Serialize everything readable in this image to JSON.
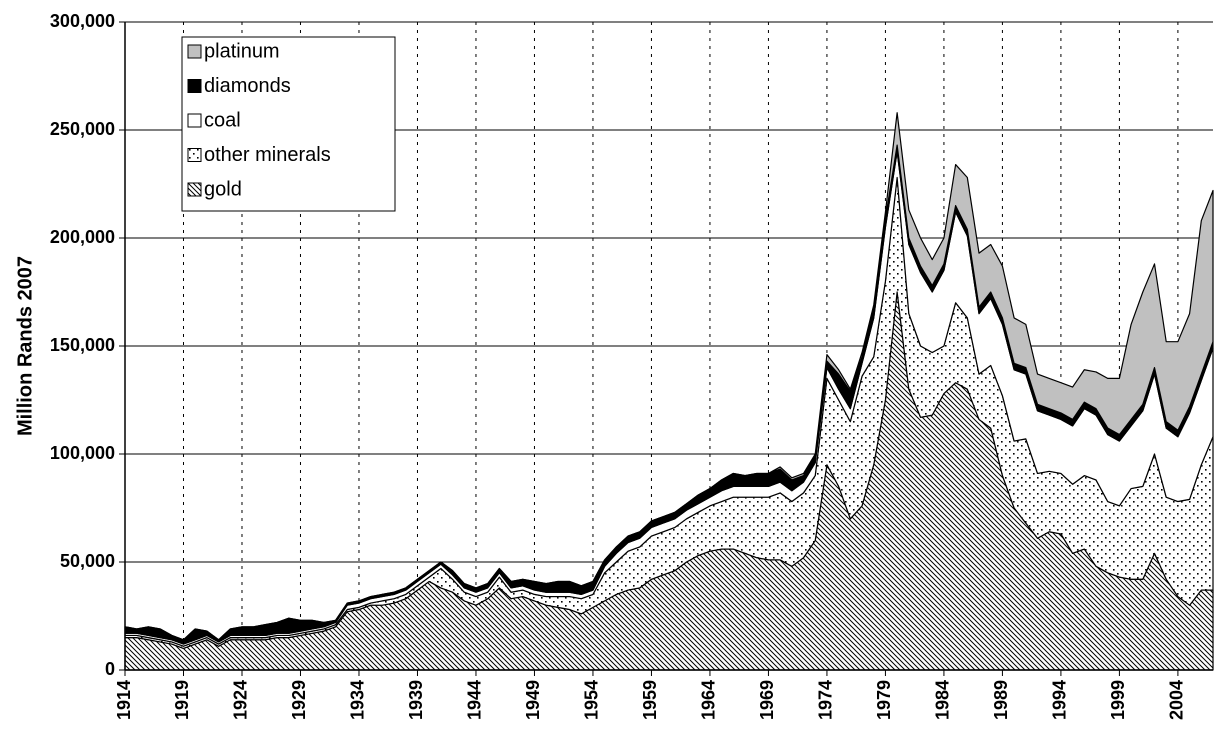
{
  "chart_data": {
    "type": "stacked-area",
    "y_label": "Million Rands 2007",
    "x": [
      1914,
      1915,
      1916,
      1917,
      1918,
      1919,
      1920,
      1921,
      1922,
      1923,
      1924,
      1925,
      1926,
      1927,
      1928,
      1929,
      1930,
      1931,
      1932,
      1933,
      1934,
      1935,
      1936,
      1937,
      1938,
      1939,
      1940,
      1941,
      1942,
      1943,
      1944,
      1945,
      1946,
      1947,
      1948,
      1949,
      1950,
      1951,
      1952,
      1953,
      1954,
      1955,
      1956,
      1957,
      1958,
      1959,
      1960,
      1961,
      1962,
      1963,
      1964,
      1965,
      1966,
      1967,
      1968,
      1969,
      1970,
      1971,
      1972,
      1973,
      1974,
      1975,
      1976,
      1977,
      1978,
      1979,
      1980,
      1981,
      1982,
      1983,
      1984,
      1985,
      1986,
      1987,
      1988,
      1989,
      1990,
      1991,
      1992,
      1993,
      1994,
      1995,
      1996,
      1997,
      1998,
      1999,
      2000,
      2001,
      2002,
      2003,
      2004,
      2005,
      2006,
      2007
    ],
    "xlim": [
      1914,
      2007
    ],
    "xticks": [
      1914,
      1919,
      1924,
      1929,
      1934,
      1939,
      1944,
      1949,
      1954,
      1959,
      1964,
      1969,
      1974,
      1979,
      1984,
      1989,
      1994,
      1999,
      2004
    ],
    "ylim": [
      0,
      300000
    ],
    "yticks": [
      0,
      {
        "value": 50000,
        "label": "50,000"
      },
      {
        "value": 100000,
        "label": "100,000"
      },
      {
        "value": 150000,
        "label": "150,000"
      },
      {
        "value": 200000,
        "label": "200,000"
      },
      {
        "value": 250000,
        "label": "250,000"
      },
      {
        "value": 300000,
        "label": "300,000"
      }
    ],
    "grid": true,
    "legend": "upper left",
    "series": [
      {
        "name": "gold",
        "color": "#ffffff",
        "pattern": "diagonal",
        "values": [
          15000,
          15000,
          14000,
          13000,
          12000,
          10000,
          12000,
          14000,
          11000,
          14000,
          14000,
          14000,
          14000,
          15000,
          15000,
          16000,
          17000,
          18000,
          20000,
          27000,
          28000,
          30000,
          30000,
          31000,
          33000,
          37000,
          41000,
          38000,
          36000,
          32000,
          30000,
          33000,
          38000,
          33000,
          34000,
          32000,
          30000,
          29000,
          28000,
          26000,
          29000,
          32000,
          35000,
          37000,
          38000,
          42000,
          44000,
          46000,
          50000,
          53000,
          55000,
          56000,
          56000,
          54000,
          52000,
          51000,
          51000,
          48000,
          52000,
          60000,
          95000,
          85000,
          70000,
          76000,
          95000,
          125000,
          175000,
          130000,
          117000,
          118000,
          128000,
          133000,
          130000,
          116000,
          112000,
          90000,
          75000,
          68000,
          61000,
          64000,
          63000,
          54000,
          56000,
          48000,
          45000,
          43000,
          42000,
          42000,
          54000,
          42000,
          34000,
          30000,
          37000,
          37000
        ]
      },
      {
        "name": "other minerals",
        "color": "#ffffff",
        "pattern": "dots",
        "values": [
          1000,
          1000,
          1000,
          1000,
          1000,
          1000,
          1000,
          1000,
          1000,
          1000,
          1000,
          1000,
          1000,
          1000,
          1000,
          1000,
          1000,
          1000,
          1000,
          1000,
          1000,
          1000,
          2000,
          2000,
          2000,
          2000,
          2000,
          9000,
          6000,
          4000,
          4000,
          3000,
          5000,
          3000,
          3000,
          3000,
          4000,
          5000,
          6000,
          7000,
          6000,
          13000,
          15000,
          18000,
          19000,
          20000,
          20000,
          20000,
          20000,
          20000,
          21000,
          22000,
          24000,
          26000,
          28000,
          29000,
          31000,
          30000,
          30000,
          30000,
          40000,
          40000,
          45000,
          60000,
          50000,
          55000,
          53000,
          35000,
          33000,
          29000,
          22000,
          37000,
          33000,
          21000,
          29000,
          37000,
          31000,
          39000,
          30000,
          28000,
          28000,
          32000,
          34000,
          40000,
          33000,
          33000,
          42000,
          43000,
          46000,
          38000,
          44000,
          49000,
          58000,
          71000
        ]
      },
      {
        "name": "coal",
        "color": "#ffffff",
        "values": [
          1000,
          1000,
          1000,
          1000,
          1000,
          1000,
          1000,
          1000,
          1000,
          1000,
          1000,
          1000,
          1000,
          1000,
          1000,
          1000,
          1000,
          1000,
          1000,
          2000,
          2000,
          2000,
          2000,
          2000,
          2000,
          2000,
          2000,
          2000,
          2000,
          2000,
          2000,
          2000,
          2000,
          2000,
          2000,
          2000,
          2000,
          2000,
          2000,
          2000,
          2000,
          3000,
          4000,
          4000,
          4000,
          4000,
          4000,
          4000,
          4000,
          4000,
          4000,
          5000,
          5000,
          5000,
          5000,
          5000,
          5000,
          5000,
          5000,
          6000,
          5000,
          5000,
          6000,
          6000,
          18000,
          25000,
          12000,
          32000,
          34000,
          28000,
          35000,
          42000,
          38000,
          28000,
          31000,
          33000,
          33000,
          30000,
          29000,
          26000,
          25000,
          27000,
          31000,
          30000,
          31000,
          30000,
          29000,
          35000,
          37000,
          32000,
          30000,
          40000,
          39000,
          41000
        ]
      },
      {
        "name": "diamonds",
        "color": "#000000",
        "values": [
          3000,
          2000,
          4000,
          4000,
          2000,
          2000,
          5000,
          2000,
          1000,
          3000,
          4000,
          4000,
          5000,
          5000,
          7000,
          5000,
          4000,
          2000,
          1000,
          1000,
          1000,
          1000,
          1000,
          1000,
          1000,
          1000,
          1000,
          1000,
          2000,
          2000,
          2000,
          2000,
          2000,
          3000,
          3000,
          4000,
          4000,
          5000,
          5000,
          4000,
          4000,
          3000,
          3000,
          3000,
          3000,
          3000,
          3000,
          3000,
          3000,
          4000,
          4000,
          5000,
          6000,
          5000,
          6000,
          6000,
          6000,
          5000,
          3000,
          3000,
          3000,
          7000,
          8000,
          3000,
          4000,
          4000,
          3000,
          3000,
          3000,
          3000,
          3000,
          3000,
          3000,
          3000,
          3000,
          3000,
          3000,
          3000,
          3000,
          3000,
          3000,
          3000,
          3000,
          3000,
          3000,
          3000,
          3000,
          3000,
          3000,
          3000,
          3000,
          3000,
          3000,
          3000
        ]
      },
      {
        "name": "platinum",
        "color": "#c0c0c0",
        "values": [
          0,
          0,
          0,
          0,
          0,
          0,
          0,
          0,
          0,
          0,
          0,
          0,
          0,
          0,
          0,
          0,
          0,
          0,
          0,
          0,
          0,
          0,
          0,
          0,
          0,
          0,
          0,
          0,
          0,
          0,
          0,
          0,
          0,
          0,
          0,
          0,
          0,
          0,
          0,
          0,
          0,
          0,
          0,
          0,
          0,
          0,
          0,
          0,
          0,
          0,
          0,
          0,
          0,
          0,
          0,
          0,
          1000,
          1000,
          1000,
          1000,
          3000,
          2000,
          1000,
          2000,
          2000,
          3000,
          15000,
          13000,
          13000,
          12000,
          12000,
          19000,
          24000,
          25000,
          22000,
          24000,
          21000,
          20000,
          14000,
          14000,
          14000,
          15000,
          15000,
          17000,
          23000,
          26000,
          44000,
          52000,
          48000,
          37000,
          41000,
          43000,
          71000,
          70000
        ]
      }
    ]
  }
}
